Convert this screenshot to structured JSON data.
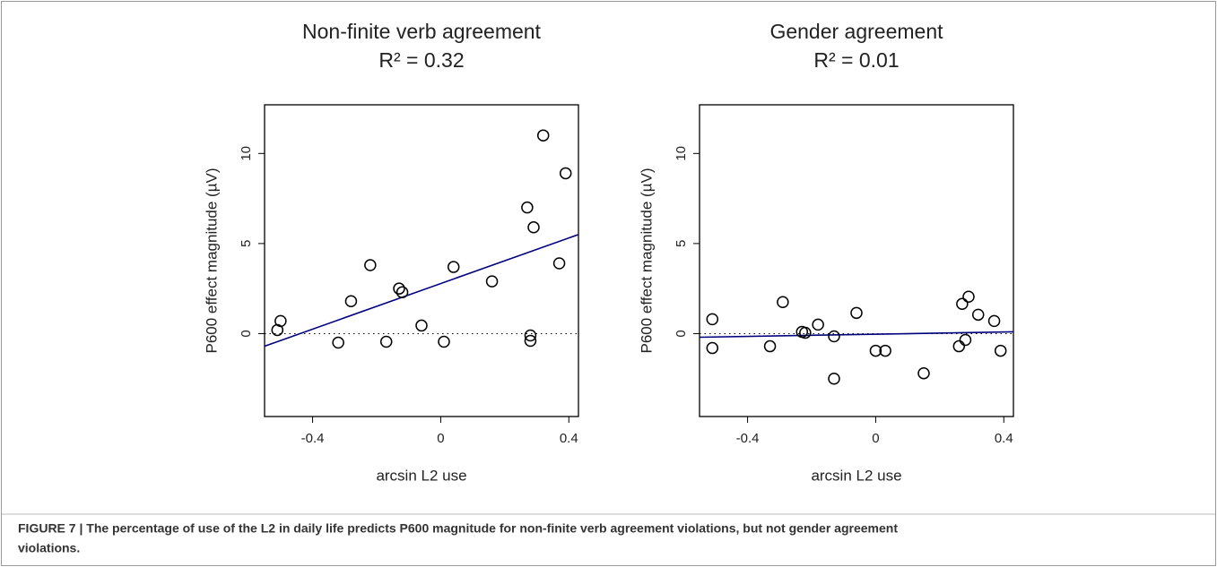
{
  "chart_data": [
    {
      "type": "scatter",
      "title": "Non-finite verb agreement",
      "subtitle": "R² = 0.32",
      "x_label": "arcsin L2 use",
      "y_label": "P600 effect magnitude (µV)",
      "x": [
        -0.5,
        -0.51,
        -0.32,
        -0.28,
        -0.22,
        -0.17,
        -0.13,
        -0.12,
        -0.06,
        0.01,
        0.04,
        0.16,
        0.27,
        0.28,
        0.28,
        0.29,
        0.32,
        0.37,
        0.39
      ],
      "values": [
        0.7,
        0.2,
        -0.5,
        1.8,
        3.8,
        -0.45,
        2.5,
        2.3,
        0.45,
        -0.45,
        3.7,
        2.9,
        7.0,
        -0.1,
        -0.4,
        5.9,
        11.0,
        3.9,
        8.9
      ],
      "fit": {
        "x": [
          -0.55,
          0.43
        ],
        "y": [
          -0.7,
          5.5
        ],
        "color": "#00007f"
      },
      "hline": 0,
      "xlim": [
        -0.55,
        0.43
      ],
      "ylim": [
        -4.6,
        12.7
      ],
      "xticks": [
        -0.4,
        0,
        0.4
      ],
      "yticks": [
        0,
        5,
        10
      ]
    },
    {
      "type": "scatter",
      "title": "Gender agreement",
      "subtitle": "R² = 0.01",
      "x_label": "arcsin L2 use",
      "y_label": "P600 effect magnitude (µV)",
      "x": [
        -0.51,
        -0.51,
        -0.33,
        -0.29,
        -0.23,
        -0.22,
        -0.18,
        -0.13,
        -0.13,
        -0.06,
        0.0,
        0.03,
        0.15,
        0.26,
        0.27,
        0.28,
        0.29,
        0.32,
        0.37,
        0.39
      ],
      "values": [
        0.8,
        -0.8,
        -0.7,
        1.75,
        0.1,
        0.05,
        0.5,
        -0.15,
        -2.5,
        1.15,
        -0.95,
        -0.95,
        -2.2,
        -0.7,
        1.65,
        -0.35,
        2.05,
        1.05,
        0.7,
        -0.95
      ],
      "fit": {
        "x": [
          -0.55,
          0.43
        ],
        "y": [
          -0.2,
          0.1
        ],
        "color": "#00007f"
      },
      "hline": 0,
      "xlim": [
        -0.55,
        0.43
      ],
      "ylim": [
        -4.6,
        12.7
      ],
      "xticks": [
        -0.4,
        0,
        0.4
      ],
      "yticks": [
        0,
        5,
        10
      ]
    }
  ],
  "caption": {
    "lines": [
      "FIGURE 7 | The percentage of use of the L2 in daily life predicts P600 magnitude for non-finite verb agreement violations, but not gender agreement",
      "violations."
    ]
  }
}
